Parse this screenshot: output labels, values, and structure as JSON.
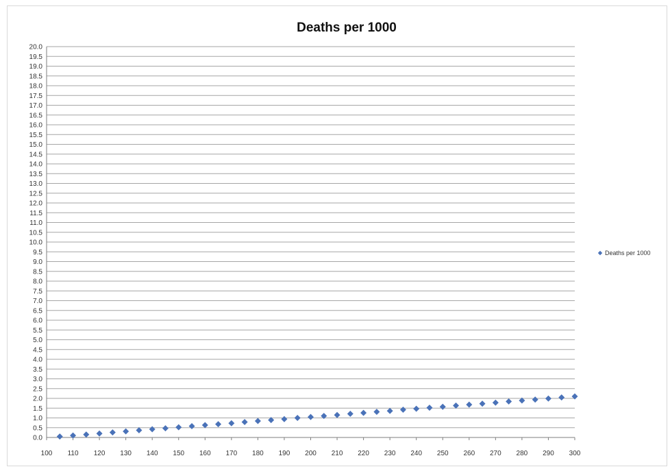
{
  "chart_data": {
    "type": "scatter",
    "title": "Deaths per 1000",
    "xlabel": "",
    "ylabel": "",
    "xlim": [
      100,
      300
    ],
    "ylim": [
      0,
      20
    ],
    "x_ticks": [
      "100",
      "110",
      "120",
      "130",
      "140",
      "150",
      "160",
      "170",
      "180",
      "190",
      "200",
      "210",
      "220",
      "230",
      "240",
      "250",
      "260",
      "270",
      "280",
      "290",
      "300"
    ],
    "y_ticks": [
      "0.0",
      "0.5",
      "1.0",
      "1.5",
      "2.0",
      "2.5",
      "3.0",
      "3.5",
      "4.0",
      "4.5",
      "5.0",
      "5.5",
      "6.0",
      "6.5",
      "7.0",
      "7.5",
      "8.0",
      "8.5",
      "9.0",
      "9.5",
      "10.0",
      "10.5",
      "11.0",
      "11.5",
      "12.0",
      "12.5",
      "13.0",
      "13.5",
      "14.0",
      "14.5",
      "15.0",
      "15.5",
      "16.0",
      "16.5",
      "17.0",
      "17.5",
      "18.0",
      "18.5",
      "19.0",
      "19.5",
      "20.0"
    ],
    "grid": "horizontal",
    "legend_position": "right",
    "series": [
      {
        "name": "Deaths per 1000",
        "color": "#4a72b8",
        "marker": "diamond",
        "points": [
          [
            105,
            0.05
          ],
          [
            110,
            0.1
          ],
          [
            115,
            0.15
          ],
          [
            120,
            0.2
          ],
          [
            125,
            0.26
          ],
          [
            130,
            0.31
          ],
          [
            135,
            0.37
          ],
          [
            140,
            0.42
          ],
          [
            145,
            0.47
          ],
          [
            150,
            0.52
          ],
          [
            155,
            0.58
          ],
          [
            160,
            0.63
          ],
          [
            165,
            0.68
          ],
          [
            170,
            0.73
          ],
          [
            175,
            0.79
          ],
          [
            180,
            0.84
          ],
          [
            185,
            0.89
          ],
          [
            190,
            0.94
          ],
          [
            195,
            1.0
          ],
          [
            200,
            1.05
          ],
          [
            205,
            1.1
          ],
          [
            210,
            1.15
          ],
          [
            215,
            1.21
          ],
          [
            220,
            1.26
          ],
          [
            225,
            1.31
          ],
          [
            230,
            1.36
          ],
          [
            235,
            1.42
          ],
          [
            240,
            1.47
          ],
          [
            245,
            1.52
          ],
          [
            250,
            1.57
          ],
          [
            255,
            1.63
          ],
          [
            260,
            1.68
          ],
          [
            265,
            1.73
          ],
          [
            270,
            1.78
          ],
          [
            275,
            1.84
          ],
          [
            280,
            1.89
          ],
          [
            285,
            1.94
          ],
          [
            290,
            1.99
          ],
          [
            295,
            2.05
          ],
          [
            300,
            2.1
          ]
        ]
      }
    ]
  }
}
